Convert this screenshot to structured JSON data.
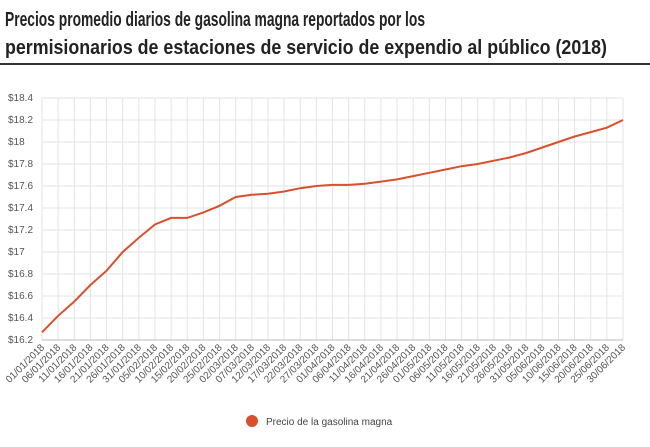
{
  "chart_data": {
    "type": "line",
    "title_lines": [
      "Precios promedio diarios de gasolina magna reportados por los",
      "permisionarios de estaciones de servicio de expendio al público (2018)"
    ],
    "categories": [
      "01/01/2018",
      "06/01/2018",
      "11/01/2018",
      "16/01/2018",
      "21/01/2018",
      "26/01/2018",
      "31/01/2018",
      "05/02/2018",
      "10/02/2018",
      "15/02/2018",
      "20/02/2018",
      "25/02/2018",
      "02/03/2018",
      "07/03/2018",
      "12/03/2018",
      "17/03/2018",
      "22/03/2018",
      "27/03/2018",
      "01/04/2018",
      "06/04/2018",
      "11/04/2018",
      "16/04/2018",
      "21/04/2018",
      "26/04/2018",
      "01/05/2018",
      "06/05/2018",
      "11/05/2018",
      "16/05/2018",
      "21/05/2018",
      "26/05/2018",
      "31/05/2018",
      "05/06/2018",
      "10/06/2018",
      "15/06/2018",
      "20/06/2018",
      "25/06/2018",
      "30/06/2018"
    ],
    "series": [
      {
        "name": "Precio de la gasolina magna",
        "color": "#d9502c",
        "values": [
          16.27,
          16.42,
          16.55,
          16.7,
          16.83,
          17.0,
          17.13,
          17.25,
          17.31,
          17.31,
          17.36,
          17.42,
          17.5,
          17.52,
          17.53,
          17.55,
          17.58,
          17.6,
          17.61,
          17.61,
          17.62,
          17.64,
          17.66,
          17.69,
          17.72,
          17.75,
          17.78,
          17.8,
          17.83,
          17.86,
          17.9,
          17.95,
          18.0,
          18.05,
          18.09,
          18.13,
          18.2
        ]
      }
    ],
    "ylim": [
      16.2,
      18.4
    ],
    "yticks": [
      {
        "value": 16.2,
        "label": "$16.2"
      },
      {
        "value": 16.4,
        "label": "$16.4"
      },
      {
        "value": 16.6,
        "label": "$16.6"
      },
      {
        "value": 16.8,
        "label": "$16.8"
      },
      {
        "value": 17,
        "label": "$17"
      },
      {
        "value": 17.2,
        "label": "$17.2"
      },
      {
        "value": 17.4,
        "label": "$17.4"
      },
      {
        "value": 17.6,
        "label": "$17.6"
      },
      {
        "value": 17.8,
        "label": "$17.8"
      },
      {
        "value": 18,
        "label": "$18"
      },
      {
        "value": 18.2,
        "label": "$18.2"
      },
      {
        "value": 18.4,
        "label": "$18.4"
      }
    ],
    "grid": true
  }
}
